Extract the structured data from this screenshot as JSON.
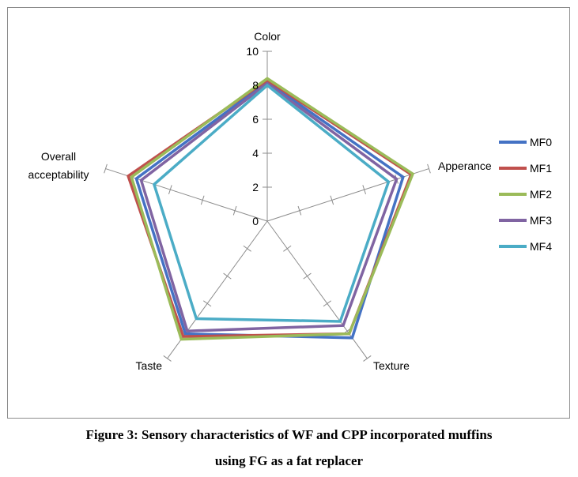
{
  "caption": {
    "line1": "Figure 3: Sensory characteristics of WF and CPP incorporated muffins",
    "line2": "using FG as a fat replacer"
  },
  "chart_data": {
    "type": "radar",
    "axes": [
      "Color",
      "Apperance",
      "Texture",
      "Taste",
      "Overall acceptability"
    ],
    "axis_label_lines": [
      [
        "Color"
      ],
      [
        "Apperance"
      ],
      [
        "Texture"
      ],
      [
        "Taste"
      ],
      [
        "Overall",
        "acceptability"
      ]
    ],
    "ticks": [
      "0",
      "2",
      "4",
      "6",
      "8",
      "10"
    ],
    "rmax": 10,
    "series": [
      {
        "name": "MF0",
        "color": "#4472C4",
        "values": [
          8.2,
          8.4,
          8.5,
          8.2,
          8.1
        ]
      },
      {
        "name": "MF1",
        "color": "#C0504D",
        "values": [
          8.3,
          8.9,
          8.2,
          8.4,
          8.6
        ]
      },
      {
        "name": "MF2",
        "color": "#9BBB59",
        "values": [
          8.4,
          9.0,
          8.2,
          8.6,
          8.4
        ]
      },
      {
        "name": "MF3",
        "color": "#8064A2",
        "values": [
          8.1,
          8.0,
          7.6,
          8.0,
          7.8
        ]
      },
      {
        "name": "MF4",
        "color": "#4BACC6",
        "values": [
          8.0,
          7.5,
          7.3,
          7.1,
          7.0
        ]
      }
    ],
    "legend_position": "right",
    "grid": "axes-only"
  }
}
